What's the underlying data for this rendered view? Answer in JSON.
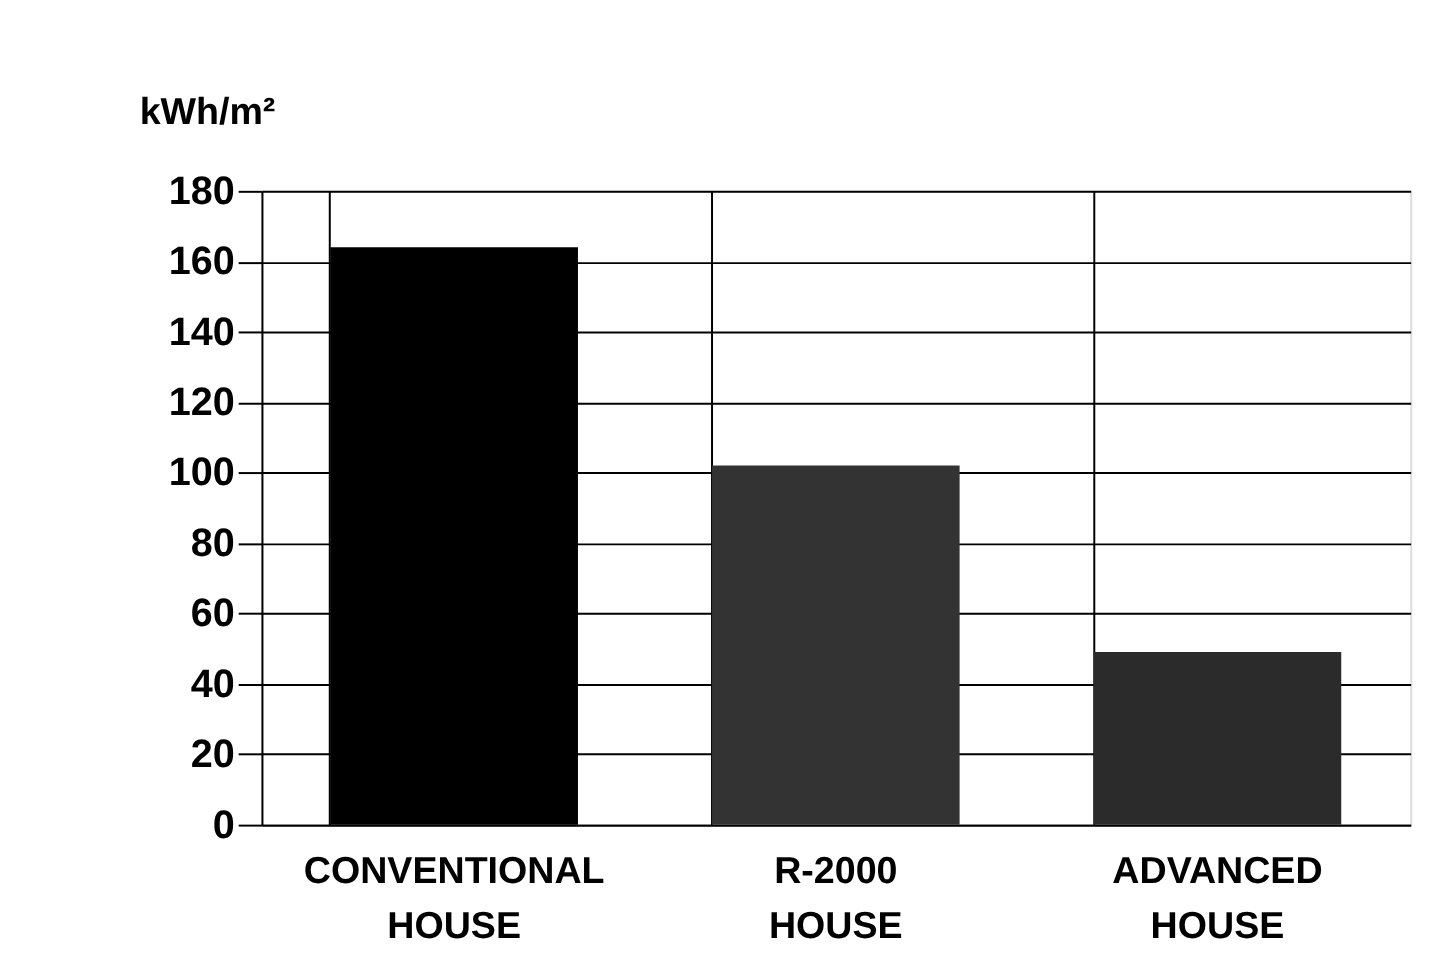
{
  "chart_data": {
    "type": "bar",
    "ylabel": "kWh/m²",
    "categories": [
      "CONVENTIONAL HOUSE",
      "R-2000 HOUSE",
      "ADVANCED HOUSE"
    ],
    "values": [
      164,
      102,
      49
    ],
    "colors": [
      "#000000",
      "#333333",
      "#2b2b2b"
    ],
    "ylim": [
      0,
      180
    ],
    "yticks": [
      0,
      20,
      40,
      60,
      80,
      100,
      120,
      140,
      160,
      180
    ],
    "grid": true
  }
}
